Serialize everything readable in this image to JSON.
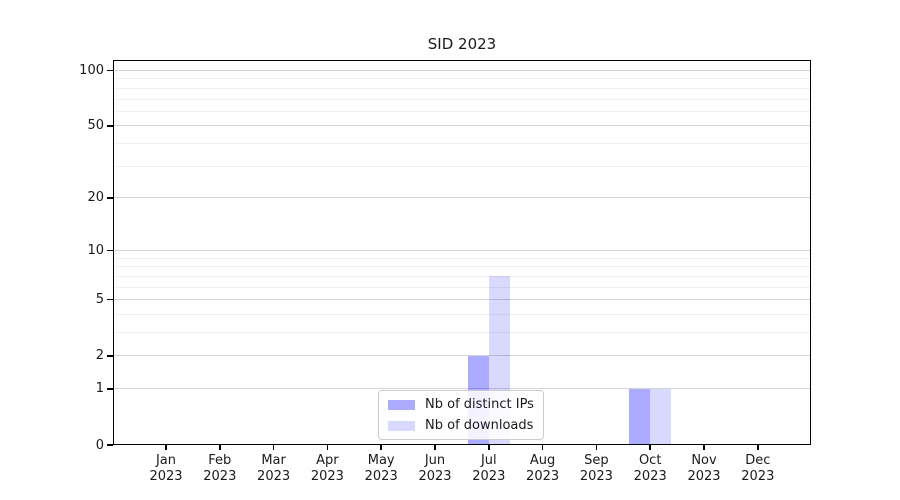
{
  "chart_data": {
    "type": "bar",
    "title": "SID 2023",
    "categories": [
      [
        "Jan",
        "2023"
      ],
      [
        "Feb",
        "2023"
      ],
      [
        "Mar",
        "2023"
      ],
      [
        "Apr",
        "2023"
      ],
      [
        "May",
        "2023"
      ],
      [
        "Jun",
        "2023"
      ],
      [
        "Jul",
        "2023"
      ],
      [
        "Aug",
        "2023"
      ],
      [
        "Sep",
        "2023"
      ],
      [
        "Oct",
        "2023"
      ],
      [
        "Nov",
        "2023"
      ],
      [
        "Dec",
        "2023"
      ]
    ],
    "series": [
      {
        "name": "Nb of distinct IPs",
        "color": "#0000FF54",
        "values": [
          0,
          0,
          0,
          0,
          0,
          0,
          2,
          0,
          0,
          1,
          0,
          0
        ]
      },
      {
        "name": "Nb of downloads",
        "color": "#0000FF26",
        "values": [
          0,
          0,
          0,
          0,
          0,
          0,
          7,
          0,
          0,
          1,
          0,
          0
        ]
      }
    ],
    "xlabel": "",
    "ylabel": "",
    "y_scale": "log1p",
    "y_ticks": [
      0,
      1,
      2,
      5,
      10,
      20,
      50,
      100
    ],
    "y_minor_gridlines": [
      3,
      4,
      6,
      7,
      8,
      9,
      30,
      40,
      60,
      70,
      80,
      90
    ],
    "ylim": [
      0,
      114
    ],
    "grid": true,
    "legend_position": "lower center"
  },
  "colors": {
    "major_grid": "#d4d4d4",
    "minor_grid": "#f0f0f0",
    "spine": "#000000",
    "text": "#1a1a1a",
    "legend_border": "#cccccc",
    "background": "#ffffff"
  }
}
